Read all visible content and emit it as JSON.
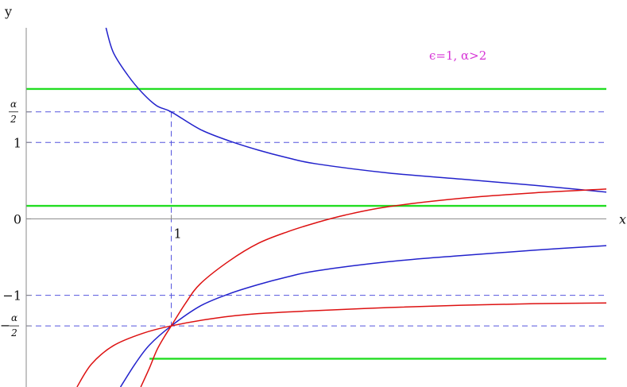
{
  "chart_data": {
    "type": "line",
    "xlabel": "x",
    "ylabel": "y",
    "annotation": "ϵ=1, α>2",
    "x_ticks": [
      {
        "value": 1,
        "label": "1"
      }
    ],
    "y_ticks": [
      {
        "value": 1,
        "label": "1"
      },
      {
        "value": 0,
        "label": "0"
      },
      {
        "value": -1,
        "label": "−1"
      }
    ],
    "frac_ticks": {
      "pos": {
        "value": 1.4,
        "num": "α",
        "den": "2"
      },
      "neg": {
        "value": -1.4,
        "sign": "−",
        "num": "α",
        "den": "2"
      }
    },
    "xlim": [
      0,
      4
    ],
    "ylim": [
      -2.2,
      2.5
    ],
    "colors": {
      "blue": "#2222cc",
      "red": "#dd1111",
      "green": "#22dd22",
      "dashed": "#5555dd",
      "axis": "#888888",
      "annotation": "#d633d6"
    },
    "dashed_lines": [
      {
        "orientation": "h",
        "y": 1.4
      },
      {
        "orientation": "h",
        "y": 1
      },
      {
        "orientation": "h",
        "y": -1
      },
      {
        "orientation": "h",
        "y": -1.4
      },
      {
        "orientation": "v",
        "x": 1,
        "y_from": -1.4,
        "y_to": 1.4
      }
    ],
    "green_lines": [
      {
        "y": 1.7,
        "x_from": 0,
        "x_to": 4
      },
      {
        "y": 0.17,
        "x_from": 0,
        "x_to": 4
      },
      {
        "y": -1.83,
        "x_from": 0.85,
        "x_to": 4
      }
    ],
    "series": [
      {
        "color": "blue",
        "points": [
          [
            0.55,
            2.5
          ],
          [
            0.6,
            2.18
          ],
          [
            0.7,
            1.88
          ],
          [
            0.8,
            1.65
          ],
          [
            0.9,
            1.48
          ],
          [
            1,
            1.4
          ],
          [
            1.2,
            1.17
          ],
          [
            1.4,
            1.02
          ],
          [
            1.6,
            0.9
          ],
          [
            1.8,
            0.8
          ],
          [
            2,
            0.72
          ],
          [
            2.5,
            0.6
          ],
          [
            3,
            0.52
          ],
          [
            3.5,
            0.44
          ],
          [
            4,
            0.35
          ]
        ]
      },
      {
        "color": "blue",
        "points": [
          [
            0.65,
            -2.2
          ],
          [
            0.75,
            -1.9
          ],
          [
            0.85,
            -1.65
          ],
          [
            1,
            -1.4
          ],
          [
            1.2,
            -1.14
          ],
          [
            1.4,
            -0.98
          ],
          [
            1.6,
            -0.86
          ],
          [
            1.8,
            -0.76
          ],
          [
            2,
            -0.68
          ],
          [
            2.5,
            -0.56
          ],
          [
            3,
            -0.48
          ],
          [
            3.5,
            -0.41
          ],
          [
            4,
            -0.35
          ]
        ]
      },
      {
        "color": "red",
        "points": [
          [
            0.79,
            -2.2
          ],
          [
            0.85,
            -1.95
          ],
          [
            0.9,
            -1.72
          ],
          [
            0.95,
            -1.55
          ],
          [
            1,
            -1.4
          ],
          [
            1.1,
            -1.1
          ],
          [
            1.2,
            -0.85
          ],
          [
            1.4,
            -0.55
          ],
          [
            1.6,
            -0.32
          ],
          [
            1.8,
            -0.17
          ],
          [
            2,
            -0.05
          ],
          [
            2.2,
            0.05
          ],
          [
            2.5,
            0.16
          ],
          [
            3,
            0.27
          ],
          [
            3.5,
            0.34
          ],
          [
            4,
            0.39
          ]
        ]
      },
      {
        "color": "red",
        "points": [
          [
            0.35,
            -2.2
          ],
          [
            0.45,
            -1.9
          ],
          [
            0.6,
            -1.66
          ],
          [
            0.8,
            -1.5
          ],
          [
            1,
            -1.4
          ],
          [
            1.3,
            -1.3
          ],
          [
            1.6,
            -1.24
          ],
          [
            2,
            -1.2
          ],
          [
            2.5,
            -1.16
          ],
          [
            3,
            -1.13
          ],
          [
            3.5,
            -1.11
          ],
          [
            4,
            -1.1
          ]
        ]
      }
    ]
  }
}
